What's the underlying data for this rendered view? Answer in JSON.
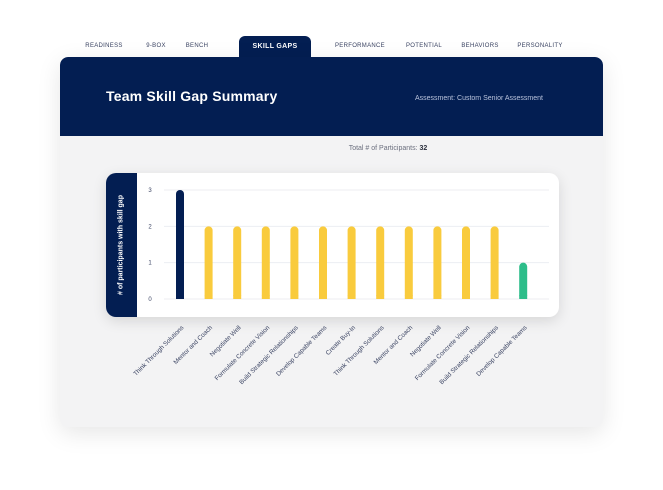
{
  "tabs": [
    {
      "label": "READINESS",
      "active": false
    },
    {
      "label": "9-BOX",
      "active": false
    },
    {
      "label": "BENCH",
      "active": false
    },
    {
      "label": "SKILL GAPS",
      "active": true
    },
    {
      "label": "PERFORMANCE",
      "active": false
    },
    {
      "label": "POTENTIAL",
      "active": false
    },
    {
      "label": "BEHAVIORS",
      "active": false
    },
    {
      "label": "PERSONALITY",
      "active": false
    }
  ],
  "header": {
    "title": "Team Skill Gap Summary",
    "assessment": "Assessment: Custom Senior Assessment"
  },
  "participants": {
    "label": "Total # of Participants:",
    "count": "32"
  },
  "colors": {
    "navy": "#031e52",
    "yellow": "#f9cb3d",
    "green": "#2dbd8a"
  },
  "chart_data": {
    "type": "bar",
    "ylabel": "# of participants with skill gap",
    "ylim": [
      0,
      3
    ],
    "yticks": [
      "0",
      "1",
      "2",
      "3"
    ],
    "categories": [
      "Think Through Solutions",
      "Mentor and Coach",
      "Negotiate Well",
      "Formulate Concrete Vision",
      "Build Strategic Relationships",
      "Develop Capable Teams",
      "Create Buy-In",
      "Think Through Solutions",
      "Mentor and Coach",
      "Negotiate Well",
      "Formulate Concrete Vision",
      "Build Strategic Relationships",
      "Develop Capable Teams"
    ],
    "values": [
      3,
      2,
      2,
      2,
      2,
      2,
      2,
      2,
      2,
      2,
      2,
      2,
      1
    ],
    "bar_colors": [
      "#031e52",
      "#f9cb3d",
      "#f9cb3d",
      "#f9cb3d",
      "#f9cb3d",
      "#f9cb3d",
      "#f9cb3d",
      "#f9cb3d",
      "#f9cb3d",
      "#f9cb3d",
      "#f9cb3d",
      "#f9cb3d",
      "#2dbd8a"
    ],
    "grid": true
  }
}
